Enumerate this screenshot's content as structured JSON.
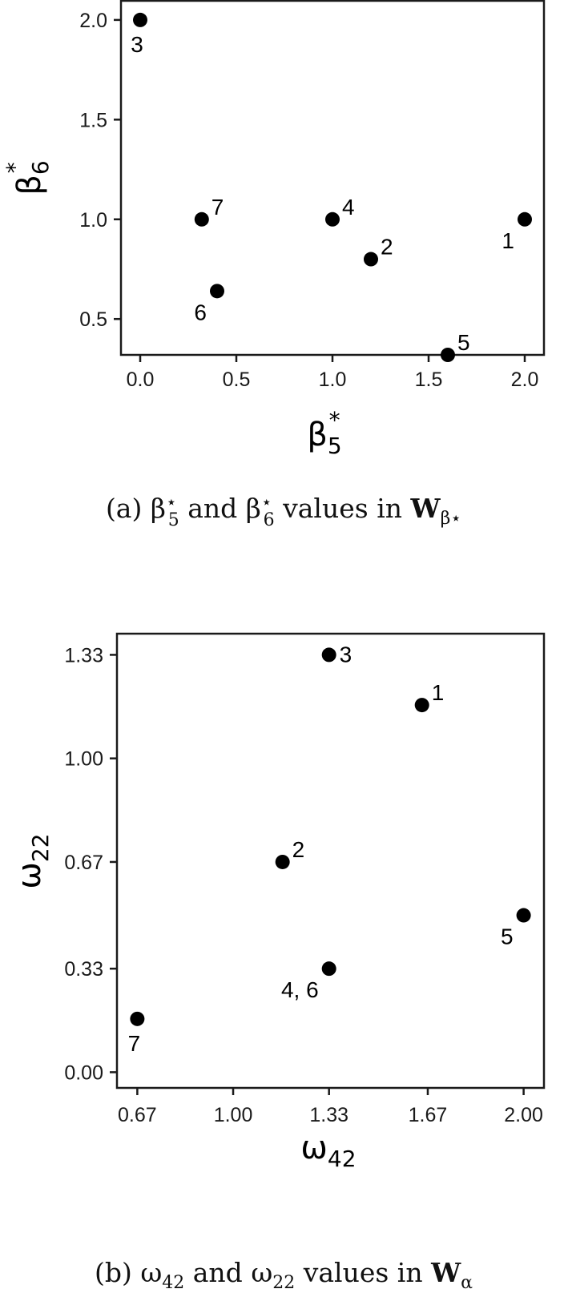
{
  "chart_data": [
    {
      "type": "scatter",
      "caption": {
        "prefix": "(a) ",
        "sym1": "β",
        "sub1": "5",
        "sup1": "⋆",
        "and": " and ",
        "sym2": "β",
        "sub2": "6",
        "sup2": "⋆",
        "mid": " values in ",
        "bold": "W",
        "boldsub": "β⋆"
      },
      "xlabel": {
        "main": "β",
        "sub": "5",
        "sup": "*"
      },
      "ylabel": {
        "main": "β",
        "sub": "6",
        "sup": "*"
      },
      "xlim": [
        -0.1,
        2.1
      ],
      "ylim": [
        0.32,
        2.1
      ],
      "xticks": [
        "0.0",
        "0.5",
        "1.0",
        "1.5",
        "2.0"
      ],
      "yticks": [
        "0.5",
        "1.0",
        "1.5",
        "2.0"
      ],
      "points": [
        {
          "label": "1",
          "x": 2.0,
          "y": 1.0,
          "pos": "bl"
        },
        {
          "label": "2",
          "x": 1.2,
          "y": 0.8,
          "pos": "tr"
        },
        {
          "label": "3",
          "x": 0.0,
          "y": 2.0,
          "pos": "b"
        },
        {
          "label": "4",
          "x": 1.0,
          "y": 1.0,
          "pos": "tr"
        },
        {
          "label": "5",
          "x": 1.6,
          "y": 0.32,
          "pos": "tr"
        },
        {
          "label": "6",
          "x": 0.4,
          "y": 0.64,
          "pos": "bl"
        },
        {
          "label": "7",
          "x": 0.32,
          "y": 1.0,
          "pos": "tr"
        }
      ]
    },
    {
      "type": "scatter",
      "caption": {
        "prefix": "(b) ",
        "sym1": "ω",
        "sub1": "42",
        "sup1": "",
        "and": " and ",
        "sym2": "ω",
        "sub2": "22",
        "sup2": "",
        "mid": " values in ",
        "bold": "W",
        "boldsub": "α"
      },
      "xlabel": {
        "main": "ω",
        "sub": "42",
        "sup": ""
      },
      "ylabel": {
        "main": "ω",
        "sub": "22",
        "sup": ""
      },
      "xlim": [
        0.6,
        2.07
      ],
      "ylim": [
        -0.05,
        1.4
      ],
      "xticks": [
        "0.67",
        "1.00",
        "1.33",
        "1.67",
        "2.00"
      ],
      "yticks": [
        "0.00",
        "0.33",
        "0.67",
        "1.00",
        "1.33"
      ],
      "points": [
        {
          "label": "1",
          "x": 1.65,
          "y": 1.17,
          "pos": "tr"
        },
        {
          "label": "2",
          "x": 1.17,
          "y": 0.67,
          "pos": "tr"
        },
        {
          "label": "3",
          "x": 1.33,
          "y": 1.33,
          "pos": "r"
        },
        {
          "label": "4, 6",
          "x": 1.33,
          "y": 0.33,
          "pos": "bl"
        },
        {
          "label": "5",
          "x": 2.0,
          "y": 0.5,
          "pos": "bl"
        },
        {
          "label": "7",
          "x": 0.67,
          "y": 0.17,
          "pos": "b"
        }
      ]
    }
  ]
}
